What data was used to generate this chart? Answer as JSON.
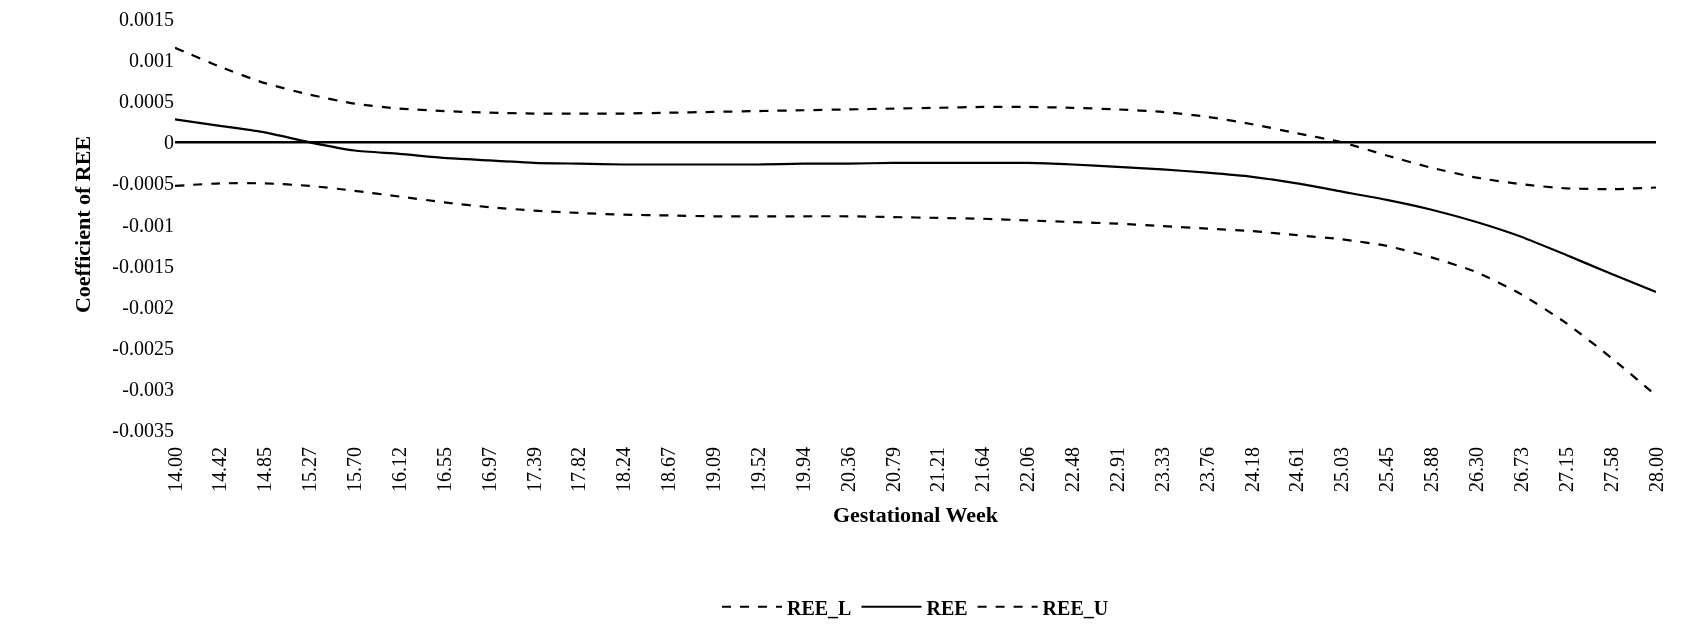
{
  "chart_data": {
    "type": "line",
    "xlabel": "Gestational Week",
    "ylabel": "Coefficient of REE",
    "categories": [
      "14.00",
      "14.42",
      "14.85",
      "15.27",
      "15.70",
      "16.12",
      "16.55",
      "16.97",
      "17.39",
      "17.82",
      "18.24",
      "18.67",
      "19.09",
      "19.52",
      "19.94",
      "20.36",
      "20.79",
      "21.21",
      "21.64",
      "22.06",
      "22.48",
      "22.91",
      "23.33",
      "23.76",
      "24.18",
      "24.61",
      "25.03",
      "25.45",
      "25.88",
      "26.30",
      "26.73",
      "27.15",
      "27.58",
      "28.00"
    ],
    "series": [
      {
        "name": "REE_L",
        "color": "#000000",
        "line_style": "dashed",
        "values": [
          -0.00053,
          -0.0005,
          -0.0005,
          -0.00053,
          -0.00059,
          -0.00066,
          -0.00073,
          -0.00079,
          -0.00083,
          -0.00086,
          -0.00088,
          -0.00089,
          -0.0009,
          -0.0009,
          -0.0009,
          -0.0009,
          -0.00091,
          -0.00092,
          -0.00093,
          -0.00095,
          -0.00097,
          -0.00099,
          -0.00102,
          -0.00105,
          -0.00108,
          -0.00113,
          -0.00118,
          -0.00126,
          -0.0014,
          -0.00158,
          -0.00185,
          -0.0022,
          -0.00262,
          -0.00308
        ]
      },
      {
        "name": "REE",
        "color": "#000000",
        "line_style": "solid",
        "values": [
          0.00028,
          0.0002,
          0.00012,
          0.0,
          -0.0001,
          -0.00014,
          -0.00019,
          -0.00022,
          -0.00025,
          -0.00026,
          -0.00027,
          -0.00027,
          -0.00027,
          -0.00027,
          -0.00026,
          -0.00026,
          -0.00025,
          -0.00025,
          -0.00025,
          -0.00025,
          -0.00027,
          -0.0003,
          -0.00033,
          -0.00037,
          -0.00042,
          -0.0005,
          -0.0006,
          -0.0007,
          -0.00082,
          -0.00097,
          -0.00115,
          -0.00137,
          -0.0016,
          -0.00182
        ]
      },
      {
        "name": "REE_U",
        "color": "#000000",
        "line_style": "dashed",
        "values": [
          0.00115,
          0.00092,
          0.00072,
          0.00058,
          0.00047,
          0.00041,
          0.00038,
          0.00036,
          0.00035,
          0.00035,
          0.00035,
          0.00036,
          0.00037,
          0.00038,
          0.00039,
          0.0004,
          0.00041,
          0.00042,
          0.00043,
          0.00043,
          0.00042,
          0.0004,
          0.00037,
          0.00031,
          0.00022,
          0.00011,
          0.0,
          -0.00016,
          -0.00031,
          -0.00043,
          -0.00051,
          -0.00056,
          -0.00057,
          -0.00055
        ]
      }
    ],
    "ylim": [
      -0.0035,
      0.0015
    ],
    "yticks": [
      -0.0035,
      -0.003,
      -0.0025,
      -0.002,
      -0.0015,
      -0.001,
      -0.0005,
      0,
      0.0005,
      0.001,
      0.0015
    ],
    "ref_lines": [
      {
        "axis": "y",
        "value": 0,
        "color": "#000000",
        "line_style": "solid"
      }
    ],
    "legend": "bottom",
    "marker": "none"
  }
}
